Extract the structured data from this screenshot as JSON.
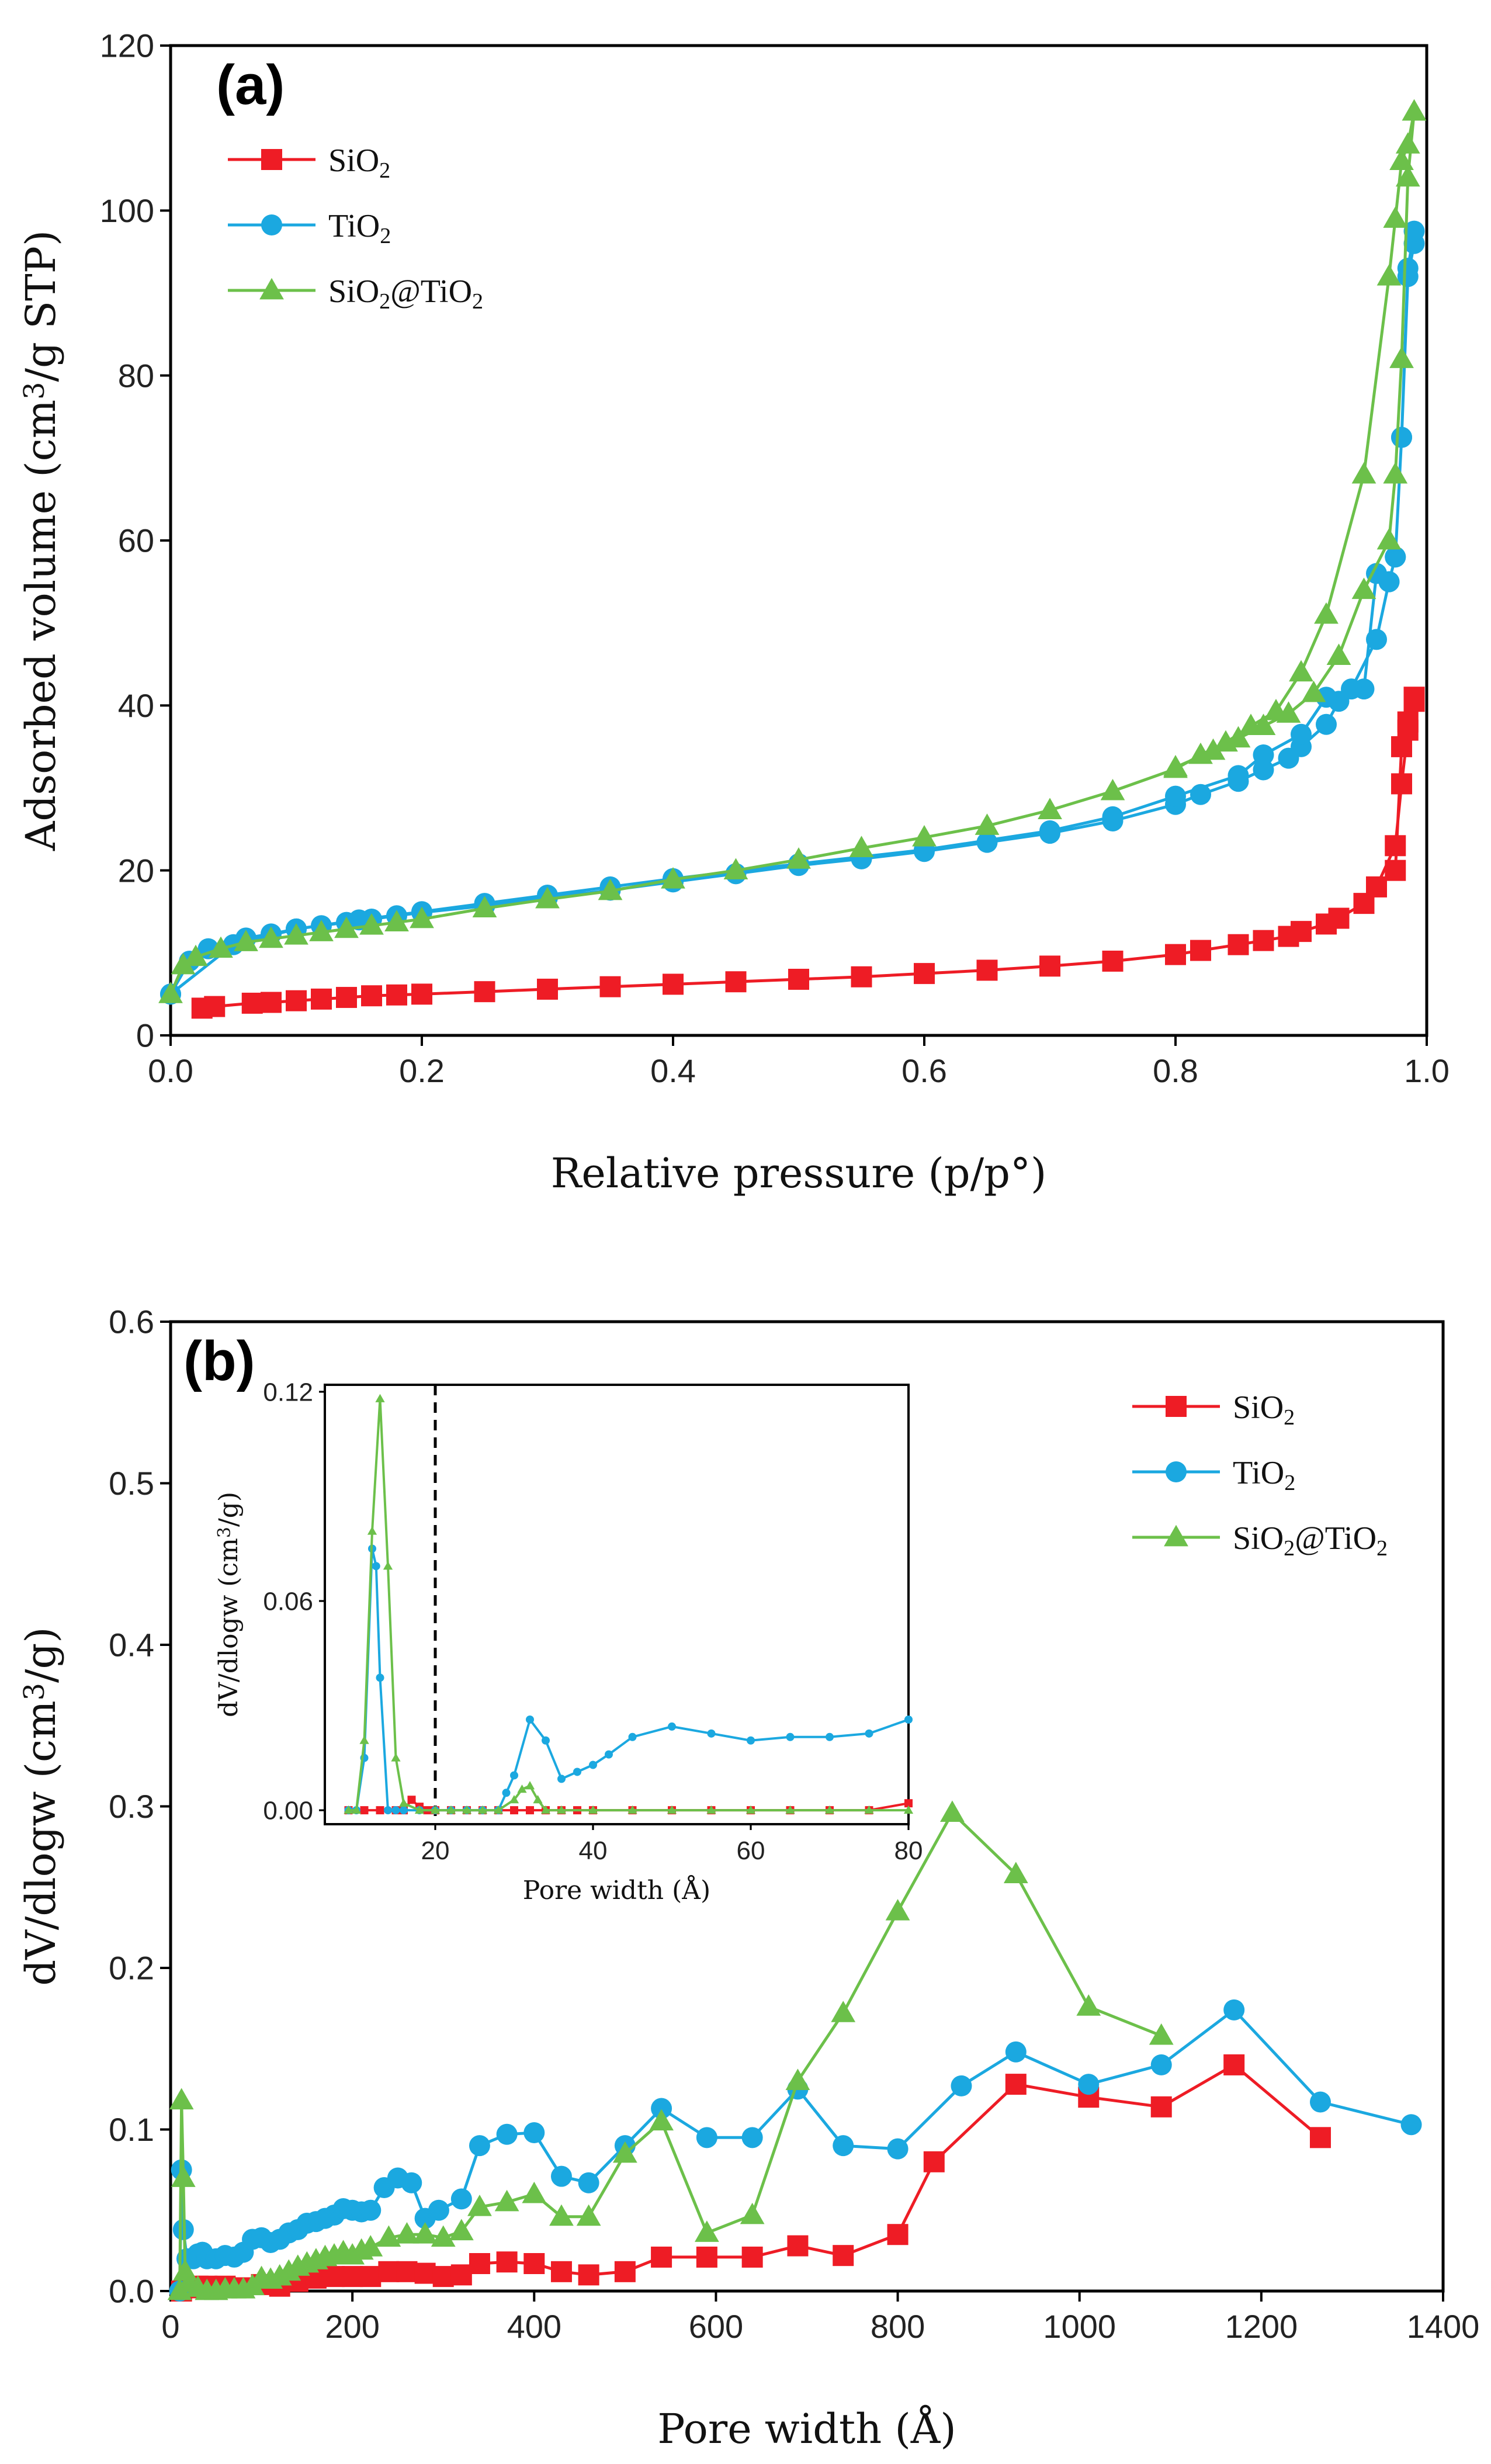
{
  "colors": {
    "SiO2": "#ee1c25",
    "TiO2": "#1ba8e0",
    "SiO2@TiO2": "#6cc04a"
  },
  "chart_data": [
    {
      "id": "a",
      "type": "line",
      "panel_label": "(a)",
      "xlabel": "Relative pressure (p/p°)",
      "ylabel": "Adsorbed volume (cm³/g STP)",
      "xlim": [
        0,
        1.0
      ],
      "ylim": [
        0,
        120
      ],
      "xticks": [
        "0.0",
        "0.2",
        "0.4",
        "0.6",
        "0.8",
        "1.0"
      ],
      "xtick_values": [
        0,
        0.2,
        0.4,
        0.6,
        0.8,
        1.0
      ],
      "yticks": [
        "0",
        "20",
        "40",
        "60",
        "80",
        "100",
        "120"
      ],
      "ytick_values": [
        0,
        20,
        40,
        60,
        80,
        100,
        120
      ],
      "legend_position": "top-left",
      "series": [
        {
          "name": "SiO₂",
          "key": "SiO2",
          "marker": "square",
          "x": [
            0.025,
            0.035,
            0.065,
            0.08,
            0.1,
            0.12,
            0.14,
            0.16,
            0.18,
            0.2,
            0.25,
            0.3,
            0.35,
            0.4,
            0.45,
            0.5,
            0.55,
            0.6,
            0.65,
            0.7,
            0.75,
            0.8,
            0.82,
            0.85,
            0.87,
            0.89,
            0.9,
            0.92,
            0.93,
            0.95,
            0.96,
            0.975,
            0.98,
            0.985,
            0.99,
            0.99,
            0.985,
            0.98,
            0.975
          ],
          "y": [
            3.3,
            3.5,
            3.9,
            4.0,
            4.2,
            4.4,
            4.6,
            4.8,
            4.9,
            5.0,
            5.3,
            5.6,
            5.9,
            6.2,
            6.5,
            6.8,
            7.1,
            7.5,
            7.9,
            8.4,
            9.0,
            9.8,
            10.3,
            11.0,
            11.5,
            12.0,
            12.6,
            13.5,
            14.2,
            16.0,
            18.0,
            23.0,
            30.5,
            37.0,
            40.5,
            41.0,
            38.0,
            35.0,
            20.0
          ]
        },
        {
          "name": "TiO₂",
          "key": "TiO2",
          "marker": "circle",
          "x": [
            0.0,
            0.015,
            0.03,
            0.06,
            0.08,
            0.1,
            0.12,
            0.14,
            0.16,
            0.18,
            0.2,
            0.25,
            0.3,
            0.35,
            0.4,
            0.45,
            0.5,
            0.55,
            0.6,
            0.65,
            0.7,
            0.75,
            0.8,
            0.82,
            0.85,
            0.87,
            0.89,
            0.9,
            0.92,
            0.93,
            0.95,
            0.96,
            0.97,
            0.975,
            0.98,
            0.985,
            0.99,
            0.99,
            0.985,
            0.98,
            0.975,
            0.97,
            0.96,
            0.94,
            0.92,
            0.9,
            0.87,
            0.85,
            0.8,
            0.75,
            0.7,
            0.6,
            0.5,
            0.4,
            0.35,
            0.3,
            0.25,
            0.2,
            0.15,
            0.1,
            0.05,
            0.0
          ],
          "y": [
            5.0,
            9.0,
            10.5,
            11.8,
            12.3,
            12.9,
            13.3,
            13.7,
            14.1,
            14.5,
            14.9,
            15.7,
            16.7,
            17.6,
            18.6,
            19.6,
            20.6,
            21.4,
            22.3,
            23.4,
            24.5,
            26.0,
            28.0,
            29.2,
            30.8,
            32.2,
            33.6,
            35.0,
            37.7,
            40.5,
            42.0,
            56.0,
            55.0,
            58.0,
            72.5,
            92.0,
            96.0,
            97.5,
            93.0,
            72.5,
            58.0,
            55.0,
            48.0,
            42.0,
            41.0,
            36.5,
            34.0,
            31.5,
            29.0,
            26.5,
            24.8,
            22.5,
            20.8,
            19.0,
            18.0,
            17.0,
            16.0,
            15.0,
            14.0,
            12.9,
            11.0,
            5.0
          ]
        },
        {
          "name": "SiO₂@TiO₂",
          "key": "SiO2@TiO2",
          "marker": "triangle",
          "x": [
            0.0,
            0.01,
            0.02,
            0.04,
            0.06,
            0.08,
            0.1,
            0.12,
            0.14,
            0.16,
            0.18,
            0.2,
            0.25,
            0.3,
            0.35,
            0.4,
            0.45,
            0.5,
            0.55,
            0.6,
            0.65,
            0.7,
            0.75,
            0.8,
            0.82,
            0.84,
            0.86,
            0.88,
            0.9,
            0.92,
            0.95,
            0.97,
            0.975,
            0.98,
            0.985,
            0.99,
            0.99,
            0.985,
            0.98,
            0.975,
            0.97,
            0.95,
            0.93,
            0.91,
            0.89,
            0.87,
            0.85,
            0.83,
            0.8
          ],
          "y": [
            5.0,
            8.5,
            9.5,
            10.5,
            11.3,
            11.7,
            12.1,
            12.5,
            12.9,
            13.3,
            13.7,
            14.1,
            15.4,
            16.5,
            17.5,
            18.9,
            20.0,
            21.3,
            22.7,
            24.0,
            25.4,
            27.3,
            29.6,
            32.3,
            34.0,
            35.5,
            37.5,
            39.3,
            44.0,
            51.0,
            68.0,
            92.0,
            99.0,
            106.0,
            108.0,
            112.0,
            112.0,
            104.0,
            82.0,
            68.0,
            60.0,
            54.0,
            46.0,
            41.5,
            39.0,
            37.5,
            36.0,
            34.5,
            32.5
          ]
        }
      ]
    },
    {
      "id": "b",
      "type": "line",
      "panel_label": "(b)",
      "xlabel": "Pore width (Å)",
      "ylabel": "dV/dlogw (cm³/g)",
      "xlim": [
        0,
        1400
      ],
      "ylim": [
        0,
        0.6
      ],
      "xticks": [
        "0",
        "200",
        "400",
        "600",
        "800",
        "1000",
        "1200",
        "1400"
      ],
      "xtick_values": [
        0,
        200,
        400,
        600,
        800,
        1000,
        1200,
        1400
      ],
      "yticks": [
        "0.0",
        "0.1",
        "0.2",
        "0.3",
        "0.4",
        "0.5",
        "0.6"
      ],
      "ytick_values": [
        0,
        0.1,
        0.2,
        0.3,
        0.4,
        0.5,
        0.6
      ],
      "legend_position": "top-right",
      "series": [
        {
          "name": "SiO₂",
          "key": "SiO2",
          "marker": "square",
          "x": [
            12,
            20,
            30,
            40,
            50,
            60,
            70,
            80,
            100,
            120,
            140,
            160,
            180,
            200,
            220,
            240,
            260,
            280,
            300,
            320,
            340,
            370,
            400,
            430,
            460,
            500,
            540,
            590,
            640,
            690,
            740,
            800,
            840,
            930,
            1010,
            1090,
            1170,
            1265
          ],
          "y": [
            0.0,
            0.002,
            0.003,
            0.003,
            0.002,
            0.003,
            0.002,
            0.002,
            0.004,
            0.003,
            0.006,
            0.008,
            0.009,
            0.009,
            0.009,
            0.012,
            0.012,
            0.011,
            0.009,
            0.01,
            0.017,
            0.018,
            0.017,
            0.012,
            0.01,
            0.012,
            0.021,
            0.021,
            0.021,
            0.028,
            0.022,
            0.035,
            0.08,
            0.128,
            0.12,
            0.114,
            0.14,
            0.095
          ]
        },
        {
          "name": "TiO₂",
          "key": "TiO2",
          "marker": "circle",
          "x": [
            10,
            12,
            14,
            18,
            25,
            30,
            35,
            40,
            50,
            60,
            70,
            80,
            90,
            100,
            110,
            120,
            130,
            140,
            150,
            160,
            170,
            180,
            190,
            200,
            210,
            220,
            235,
            250,
            265,
            280,
            295,
            320,
            340,
            370,
            400,
            430,
            460,
            500,
            540,
            590,
            640,
            690,
            740,
            800,
            870,
            930,
            1010,
            1090,
            1170,
            1265,
            1365
          ],
          "y": [
            0.0,
            0.075,
            0.038,
            0.02,
            0.02,
            0.023,
            0.024,
            0.02,
            0.02,
            0.022,
            0.021,
            0.024,
            0.032,
            0.033,
            0.03,
            0.032,
            0.036,
            0.038,
            0.042,
            0.043,
            0.045,
            0.047,
            0.051,
            0.05,
            0.049,
            0.05,
            0.064,
            0.07,
            0.067,
            0.045,
            0.05,
            0.057,
            0.09,
            0.097,
            0.098,
            0.071,
            0.067,
            0.09,
            0.113,
            0.095,
            0.095,
            0.125,
            0.09,
            0.088,
            0.127,
            0.148,
            0.128,
            0.14,
            0.174,
            0.117,
            0.103
          ]
        },
        {
          "name": "SiO₂@TiO₂",
          "key": "SiO2@TiO2",
          "marker": "triangle",
          "x": [
            10,
            12,
            14,
            16,
            20,
            30,
            40,
            50,
            60,
            70,
            80,
            90,
            100,
            110,
            120,
            130,
            140,
            150,
            160,
            170,
            180,
            190,
            200,
            210,
            220,
            240,
            260,
            280,
            300,
            320,
            340,
            370,
            400,
            430,
            460,
            500,
            540,
            590,
            640,
            690,
            740,
            800,
            860,
            930,
            1010,
            1090
          ],
          "y": [
            0.0,
            0.118,
            0.07,
            0.012,
            0.005,
            0.002,
            0.0,
            0.0,
            0.001,
            0.001,
            0.001,
            0.003,
            0.008,
            0.007,
            0.009,
            0.012,
            0.015,
            0.017,
            0.019,
            0.021,
            0.022,
            0.024,
            0.022,
            0.025,
            0.027,
            0.033,
            0.035,
            0.035,
            0.033,
            0.037,
            0.052,
            0.055,
            0.06,
            0.046,
            0.046,
            0.085,
            0.105,
            0.036,
            0.047,
            0.13,
            0.172,
            0.235,
            0.296,
            0.258,
            0.176,
            0.158
          ]
        }
      ]
    },
    {
      "id": "b-inset",
      "type": "line",
      "xlabel": "Pore width (Å)",
      "ylabel": "dV/dlogw (cm³/g)",
      "xlim": [
        6,
        80
      ],
      "ylim": [
        -0.004,
        0.122
      ],
      "xticks": [
        "20",
        "40",
        "60",
        "80"
      ],
      "xtick_values": [
        20,
        40,
        60,
        80
      ],
      "yticks": [
        "0.00",
        "0.06",
        "0.12"
      ],
      "ytick_values": [
        0,
        0.06,
        0.12
      ],
      "vline_x": 20,
      "series": [
        {
          "name": "SiO₂",
          "key": "SiO2",
          "marker": "square",
          "x": [
            9,
            11,
            13,
            15,
            16,
            17,
            18,
            19,
            20,
            22,
            24,
            26,
            28,
            30,
            32,
            34,
            36,
            38,
            40,
            45,
            50,
            55,
            60,
            65,
            70,
            75,
            80
          ],
          "y": [
            0.0,
            0.0,
            0.0,
            0.0,
            0.0,
            0.003,
            0.001,
            0.0,
            0.0,
            0.0,
            0.0,
            0.0,
            0.0,
            0.0,
            0.0,
            0.0,
            0.0,
            0.0,
            0.0,
            0.0,
            0.0,
            0.0,
            0.0,
            0.0,
            0.0,
            0.0,
            0.002
          ]
        },
        {
          "name": "TiO₂",
          "key": "TiO2",
          "marker": "circle",
          "x": [
            9,
            10,
            11,
            12,
            12.5,
            13,
            14,
            15,
            16,
            18,
            20,
            22,
            24,
            26,
            28,
            29,
            30,
            32,
            34,
            36,
            38,
            40,
            42,
            45,
            50,
            55,
            60,
            65,
            70,
            75,
            80
          ],
          "y": [
            0.0,
            0.0,
            0.015,
            0.075,
            0.07,
            0.038,
            0.0,
            0.0,
            0.0,
            0.0,
            0.0,
            0.0,
            0.0,
            0.0,
            0.0,
            0.005,
            0.01,
            0.026,
            0.02,
            0.009,
            0.011,
            0.013,
            0.016,
            0.021,
            0.024,
            0.022,
            0.02,
            0.021,
            0.021,
            0.022,
            0.026
          ]
        },
        {
          "name": "SiO₂@TiO₂",
          "key": "SiO2@TiO2",
          "marker": "triangle",
          "x": [
            9,
            10,
            11,
            12,
            13,
            14,
            15,
            16,
            18,
            20,
            22,
            24,
            26,
            28,
            30,
            31,
            32,
            33,
            34,
            36,
            40,
            45,
            50,
            55,
            60,
            65,
            70,
            75,
            80
          ],
          "y": [
            0.0,
            0.0,
            0.02,
            0.08,
            0.118,
            0.07,
            0.015,
            0.002,
            0.0,
            0.0,
            0.0,
            0.0,
            0.0,
            0.0,
            0.003,
            0.006,
            0.007,
            0.003,
            0.0,
            0.0,
            0.0,
            0.0,
            0.0,
            0.0,
            0.0,
            0.0,
            0.0,
            0.0,
            0.0
          ]
        }
      ]
    }
  ]
}
